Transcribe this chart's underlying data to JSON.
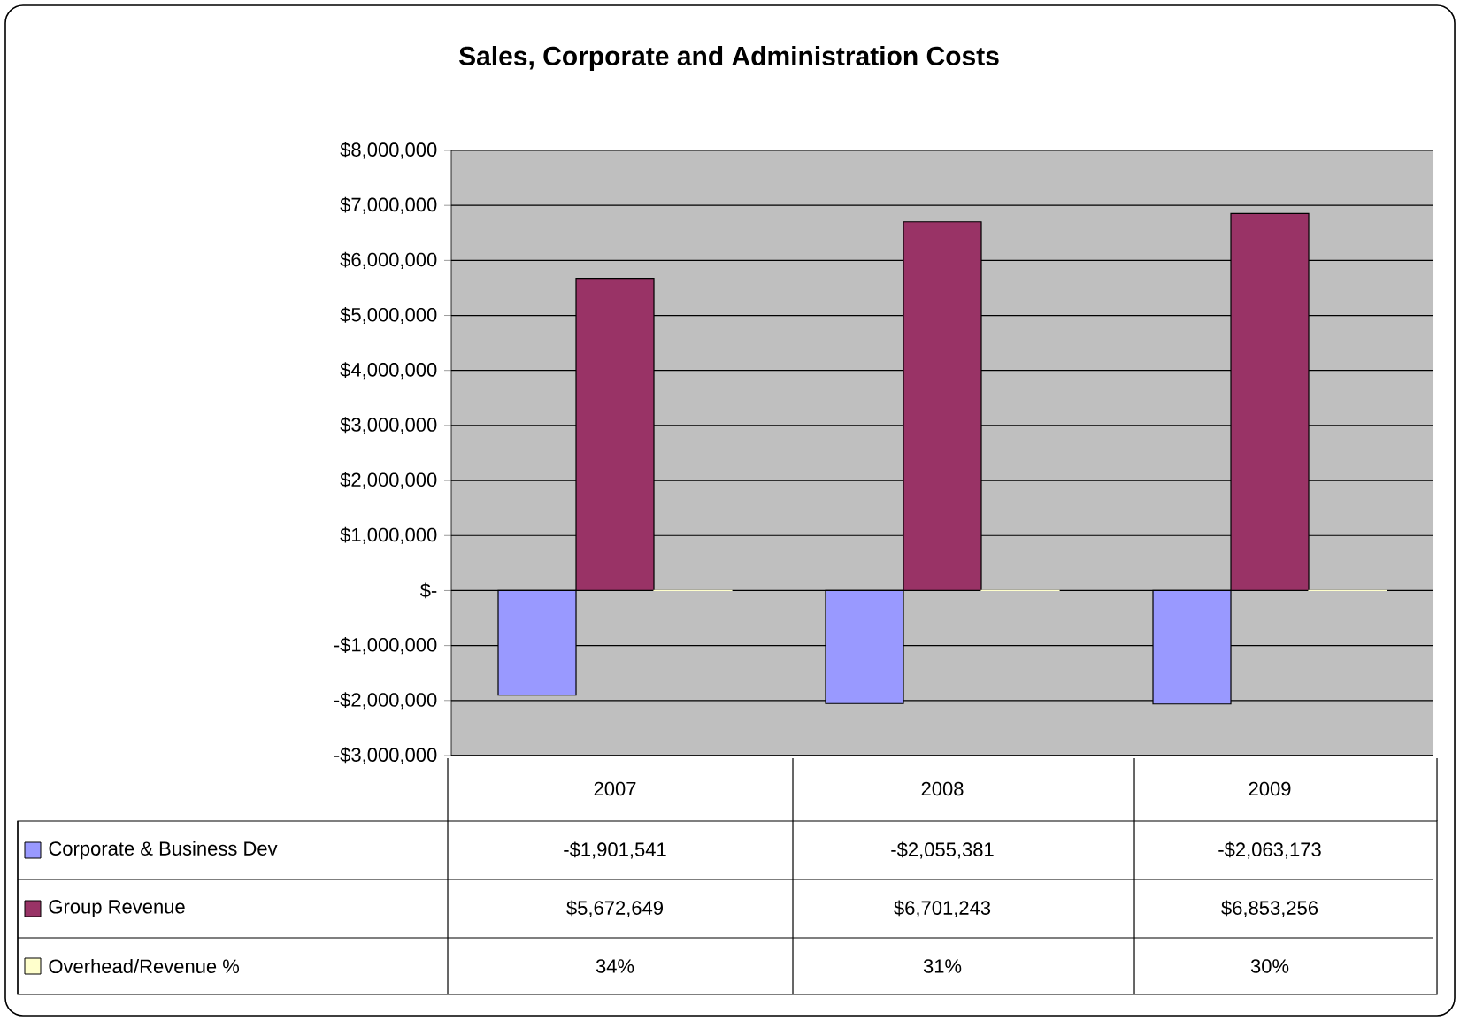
{
  "chart_data": {
    "type": "bar",
    "title": "Sales, Corporate and Administration Costs",
    "categories": [
      "2007",
      "2008",
      "2009"
    ],
    "series": [
      {
        "name": "Corporate & Business Dev",
        "color": "#9999ff",
        "values": [
          -1901541,
          -2055381,
          -2063173
        ],
        "value_labels": [
          "-$1,901,541",
          "-$2,055,381",
          "-$2,063,173"
        ]
      },
      {
        "name": "Group Revenue",
        "color": "#993366",
        "values": [
          5672649,
          6701243,
          6853256
        ],
        "value_labels": [
          "$5,672,649",
          "$6,701,243",
          "$6,853,256"
        ]
      },
      {
        "name": "Overhead/Revenue %",
        "color": "#ffffcc",
        "values": [
          34,
          31,
          30
        ],
        "value_labels": [
          "34%",
          "31%",
          "30%"
        ]
      }
    ],
    "ylim": [
      -3000000,
      8000000
    ],
    "yticks": [
      {
        "value": -3000000,
        "label": "-$3,000,000"
      },
      {
        "value": -2000000,
        "label": "-$2,000,000"
      },
      {
        "value": -1000000,
        "label": "-$1,000,000"
      },
      {
        "value": 0,
        "label": "$-"
      },
      {
        "value": 1000000,
        "label": "$1,000,000"
      },
      {
        "value": 2000000,
        "label": "$2,000,000"
      },
      {
        "value": 3000000,
        "label": "$3,000,000"
      },
      {
        "value": 4000000,
        "label": "$4,000,000"
      },
      {
        "value": 5000000,
        "label": "$5,000,000"
      },
      {
        "value": 6000000,
        "label": "$6,000,000"
      },
      {
        "value": 7000000,
        "label": "$7,000,000"
      },
      {
        "value": 8000000,
        "label": "$8,000,000"
      }
    ],
    "grid": "y",
    "legend": "bottom"
  }
}
